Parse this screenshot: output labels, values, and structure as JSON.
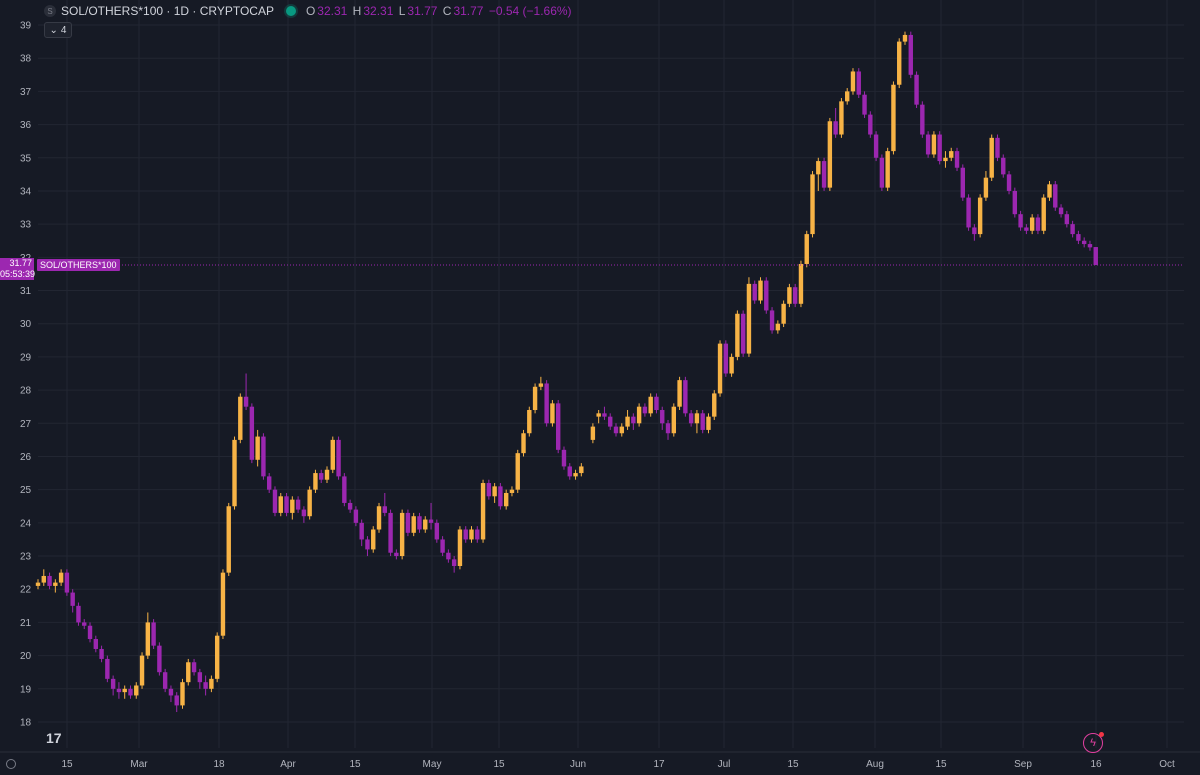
{
  "header": {
    "symbol_icon": "S",
    "title": "SOL/OTHERS*100 · 1D · CRYPTOCAP",
    "ohlc": {
      "o_label": "O",
      "o": "32.31",
      "h_label": "H",
      "h": "32.31",
      "l_label": "L",
      "l": "31.77",
      "c_label": "C",
      "c": "31.77",
      "change": "−0.54 (−1.66%)"
    },
    "collapse_count": "4"
  },
  "price_tag": {
    "value": "31.77",
    "countdown": "05:53:39",
    "series_label": "SOL/OTHERS*100"
  },
  "colors": {
    "up": "#f7b346",
    "down": "#9c27b0",
    "background": "#161a25",
    "grid": "#222632"
  },
  "icons": {
    "logo": "tradingview-logo-icon",
    "bolt": "lightning-icon",
    "settings": "gear-icon"
  },
  "chart_data": {
    "type": "candlestick",
    "y_ticks": [
      18,
      19,
      20,
      21,
      22,
      23,
      24,
      25,
      26,
      27,
      28,
      29,
      30,
      31,
      32,
      33,
      34,
      35,
      36,
      37,
      38,
      39
    ],
    "ylim": [
      17.6,
      39.3
    ],
    "x_ticks": [
      "15",
      "Mar",
      "18",
      "Apr",
      "15",
      "May",
      "15",
      "Jun",
      "17",
      "Jul",
      "15",
      "Aug",
      "15",
      "Sep",
      "16",
      "Oct"
    ],
    "last_price": 31.77,
    "candles": [
      [
        22.1,
        22.3,
        22.0,
        22.2
      ],
      [
        22.2,
        22.6,
        22.1,
        22.4
      ],
      [
        22.4,
        22.5,
        22.0,
        22.1
      ],
      [
        22.1,
        22.3,
        21.9,
        22.2
      ],
      [
        22.2,
        22.6,
        22.1,
        22.5
      ],
      [
        22.5,
        22.6,
        21.8,
        21.9
      ],
      [
        21.9,
        22.0,
        21.3,
        21.5
      ],
      [
        21.5,
        21.6,
        20.9,
        21.0
      ],
      [
        21.0,
        21.1,
        20.8,
        20.9
      ],
      [
        20.9,
        21.0,
        20.4,
        20.5
      ],
      [
        20.5,
        20.6,
        20.1,
        20.2
      ],
      [
        20.2,
        20.3,
        19.8,
        19.9
      ],
      [
        19.9,
        20.0,
        19.2,
        19.3
      ],
      [
        19.3,
        19.4,
        18.8,
        19.0
      ],
      [
        19.0,
        19.2,
        18.7,
        18.9
      ],
      [
        18.9,
        19.1,
        18.7,
        19.0
      ],
      [
        19.0,
        19.1,
        18.7,
        18.8
      ],
      [
        18.8,
        19.2,
        18.7,
        19.1
      ],
      [
        19.1,
        20.1,
        19.0,
        20.0
      ],
      [
        20.0,
        21.3,
        19.9,
        21.0
      ],
      [
        21.0,
        21.1,
        20.2,
        20.3
      ],
      [
        20.3,
        20.4,
        19.4,
        19.5
      ],
      [
        19.5,
        19.6,
        18.9,
        19.0
      ],
      [
        19.0,
        19.1,
        18.6,
        18.8
      ],
      [
        18.8,
        18.9,
        18.3,
        18.5
      ],
      [
        18.5,
        19.3,
        18.4,
        19.2
      ],
      [
        19.2,
        19.9,
        19.1,
        19.8
      ],
      [
        19.8,
        19.9,
        19.4,
        19.5
      ],
      [
        19.5,
        19.6,
        19.0,
        19.2
      ],
      [
        19.2,
        19.4,
        18.8,
        19.0
      ],
      [
        19.0,
        19.4,
        18.9,
        19.3
      ],
      [
        19.3,
        20.7,
        19.2,
        20.6
      ],
      [
        20.6,
        22.6,
        20.5,
        22.5
      ],
      [
        22.5,
        24.6,
        22.4,
        24.5
      ],
      [
        24.5,
        26.6,
        24.4,
        26.5
      ],
      [
        26.5,
        27.9,
        26.4,
        27.8
      ],
      [
        27.8,
        28.5,
        27.4,
        27.5
      ],
      [
        27.5,
        27.6,
        25.8,
        25.9
      ],
      [
        25.9,
        26.8,
        25.7,
        26.6
      ],
      [
        26.6,
        26.7,
        25.3,
        25.4
      ],
      [
        25.4,
        25.5,
        24.9,
        25.0
      ],
      [
        25.0,
        25.1,
        24.2,
        24.3
      ],
      [
        24.3,
        24.9,
        24.2,
        24.8
      ],
      [
        24.8,
        24.9,
        24.2,
        24.3
      ],
      [
        24.3,
        24.8,
        24.1,
        24.7
      ],
      [
        24.7,
        24.8,
        24.3,
        24.4
      ],
      [
        24.4,
        24.5,
        24.0,
        24.2
      ],
      [
        24.2,
        25.1,
        24.1,
        25.0
      ],
      [
        25.0,
        25.6,
        24.9,
        25.5
      ],
      [
        25.5,
        25.6,
        25.2,
        25.3
      ],
      [
        25.3,
        25.7,
        25.2,
        25.6
      ],
      [
        25.6,
        26.6,
        25.5,
        26.5
      ],
      [
        26.5,
        26.6,
        25.3,
        25.4
      ],
      [
        25.4,
        25.5,
        24.5,
        24.6
      ],
      [
        24.6,
        24.7,
        24.3,
        24.4
      ],
      [
        24.4,
        24.5,
        23.9,
        24.0
      ],
      [
        24.0,
        24.1,
        23.3,
        23.5
      ],
      [
        23.5,
        23.6,
        23.0,
        23.2
      ],
      [
        23.2,
        23.9,
        23.1,
        23.8
      ],
      [
        23.8,
        24.6,
        23.7,
        24.5
      ],
      [
        24.5,
        24.9,
        24.2,
        24.3
      ],
      [
        24.3,
        24.4,
        23.0,
        23.1
      ],
      [
        23.1,
        23.2,
        22.9,
        23.0
      ],
      [
        23.0,
        24.4,
        22.9,
        24.3
      ],
      [
        24.3,
        24.4,
        23.6,
        23.7
      ],
      [
        23.7,
        24.3,
        23.6,
        24.2
      ],
      [
        24.2,
        24.3,
        23.7,
        23.8
      ],
      [
        23.8,
        24.2,
        23.7,
        24.1
      ],
      [
        24.1,
        24.6,
        23.8,
        24.0
      ],
      [
        24.0,
        24.1,
        23.4,
        23.5
      ],
      [
        23.5,
        23.6,
        23.0,
        23.1
      ],
      [
        23.1,
        23.2,
        22.8,
        22.9
      ],
      [
        22.9,
        23.0,
        22.5,
        22.7
      ],
      [
        22.7,
        23.9,
        22.6,
        23.8
      ],
      [
        23.8,
        23.9,
        23.4,
        23.5
      ],
      [
        23.5,
        23.9,
        23.4,
        23.8
      ],
      [
        23.8,
        23.9,
        23.4,
        23.5
      ],
      [
        23.5,
        25.3,
        23.4,
        25.2
      ],
      [
        25.2,
        25.3,
        24.7,
        24.8
      ],
      [
        24.8,
        25.2,
        24.6,
        25.1
      ],
      [
        25.1,
        25.2,
        24.4,
        24.5
      ],
      [
        24.5,
        25.0,
        24.4,
        24.9
      ],
      [
        24.9,
        25.1,
        24.8,
        25.0
      ],
      [
        25.0,
        26.2,
        24.9,
        26.1
      ],
      [
        26.1,
        26.8,
        26.0,
        26.7
      ],
      [
        26.7,
        27.5,
        26.6,
        27.4
      ],
      [
        27.4,
        28.2,
        27.3,
        28.1
      ],
      [
        28.1,
        28.4,
        28.0,
        28.2
      ],
      [
        28.2,
        28.3,
        26.9,
        27.0
      ],
      [
        27.0,
        27.7,
        26.9,
        27.6
      ],
      [
        27.6,
        27.7,
        26.1,
        26.2
      ],
      [
        26.2,
        26.3,
        25.6,
        25.7
      ],
      [
        25.7,
        25.8,
        25.3,
        25.4
      ],
      [
        25.4,
        25.6,
        25.3,
        25.5
      ],
      [
        25.5,
        25.8,
        25.4,
        25.7
      ],
      null,
      [
        26.5,
        27.0,
        26.4,
        26.9
      ],
      [
        27.2,
        27.4,
        27.0,
        27.3
      ],
      [
        27.3,
        27.5,
        27.1,
        27.2
      ],
      [
        27.2,
        27.3,
        26.8,
        26.9
      ],
      [
        26.9,
        27.0,
        26.6,
        26.7
      ],
      [
        26.7,
        27.0,
        26.6,
        26.9
      ],
      [
        26.9,
        27.4,
        26.8,
        27.2
      ],
      [
        27.2,
        27.3,
        26.8,
        27.0
      ],
      [
        27.0,
        27.6,
        26.9,
        27.5
      ],
      [
        27.5,
        27.6,
        27.2,
        27.3
      ],
      [
        27.3,
        27.9,
        27.2,
        27.8
      ],
      [
        27.8,
        27.9,
        27.3,
        27.4
      ],
      [
        27.4,
        27.5,
        26.8,
        27.0
      ],
      [
        27.0,
        27.1,
        26.5,
        26.7
      ],
      [
        26.7,
        27.6,
        26.6,
        27.5
      ],
      [
        27.5,
        28.4,
        27.4,
        28.3
      ],
      [
        28.3,
        28.4,
        27.2,
        27.3
      ],
      [
        27.3,
        27.4,
        26.9,
        27.0
      ],
      [
        27.0,
        27.4,
        26.7,
        27.3
      ],
      [
        27.3,
        27.4,
        26.7,
        26.8
      ],
      [
        26.8,
        27.3,
        26.7,
        27.2
      ],
      [
        27.2,
        28.0,
        27.1,
        27.9
      ],
      [
        27.9,
        29.5,
        27.8,
        29.4
      ],
      [
        29.4,
        29.5,
        28.4,
        28.5
      ],
      [
        28.5,
        29.1,
        28.4,
        29.0
      ],
      [
        29.0,
        30.4,
        28.9,
        30.3
      ],
      [
        30.3,
        30.4,
        29.0,
        29.1
      ],
      [
        29.1,
        31.4,
        29.0,
        31.2
      ],
      [
        31.2,
        31.3,
        30.6,
        30.7
      ],
      [
        30.7,
        31.4,
        30.6,
        31.3
      ],
      [
        31.3,
        31.4,
        30.3,
        30.4
      ],
      [
        30.4,
        30.5,
        29.7,
        29.8
      ],
      [
        29.8,
        30.1,
        29.7,
        30.0
      ],
      [
        30.0,
        30.7,
        29.9,
        30.6
      ],
      [
        30.6,
        31.2,
        30.5,
        31.1
      ],
      [
        31.1,
        31.2,
        30.5,
        30.6
      ],
      [
        30.6,
        31.9,
        30.5,
        31.8
      ],
      [
        31.8,
        32.8,
        31.7,
        32.7
      ],
      [
        32.7,
        34.6,
        32.6,
        34.5
      ],
      [
        34.5,
        35.0,
        34.0,
        34.9
      ],
      [
        34.9,
        35.0,
        34.0,
        34.1
      ],
      [
        34.1,
        36.2,
        34.0,
        36.1
      ],
      [
        36.1,
        36.5,
        35.6,
        35.7
      ],
      [
        35.7,
        36.8,
        35.6,
        36.7
      ],
      [
        36.7,
        37.1,
        36.6,
        37.0
      ],
      [
        37.0,
        37.7,
        36.9,
        37.6
      ],
      [
        37.6,
        37.7,
        36.8,
        36.9
      ],
      [
        36.9,
        37.0,
        36.2,
        36.3
      ],
      [
        36.3,
        36.4,
        35.6,
        35.7
      ],
      [
        35.7,
        35.8,
        34.9,
        35.0
      ],
      [
        35.0,
        35.1,
        34.0,
        34.1
      ],
      [
        34.1,
        35.3,
        34.0,
        35.2
      ],
      [
        35.2,
        37.3,
        35.1,
        37.2
      ],
      [
        37.2,
        38.6,
        37.1,
        38.5
      ],
      [
        38.5,
        38.8,
        38.4,
        38.7
      ],
      [
        38.7,
        38.8,
        37.4,
        37.5
      ],
      [
        37.5,
        37.6,
        36.5,
        36.6
      ],
      [
        36.6,
        36.7,
        35.6,
        35.7
      ],
      [
        35.7,
        35.8,
        35.0,
        35.1
      ],
      [
        35.1,
        35.8,
        35.0,
        35.7
      ],
      [
        35.7,
        35.8,
        34.8,
        34.9
      ],
      [
        34.9,
        35.2,
        34.7,
        35.0
      ],
      [
        35.0,
        35.3,
        34.9,
        35.2
      ],
      [
        35.2,
        35.3,
        34.6,
        34.7
      ],
      [
        34.7,
        34.8,
        33.7,
        33.8
      ],
      [
        33.8,
        33.9,
        32.8,
        32.9
      ],
      [
        32.9,
        33.0,
        32.5,
        32.7
      ],
      [
        32.7,
        33.9,
        32.6,
        33.8
      ],
      [
        33.8,
        34.6,
        33.7,
        34.4
      ],
      [
        34.4,
        35.7,
        34.3,
        35.6
      ],
      [
        35.6,
        35.7,
        34.9,
        35.0
      ],
      [
        35.0,
        35.1,
        34.4,
        34.5
      ],
      [
        34.5,
        34.6,
        33.9,
        34.0
      ],
      [
        34.0,
        34.1,
        33.2,
        33.3
      ],
      [
        33.3,
        33.4,
        32.8,
        32.9
      ],
      [
        32.9,
        33.0,
        32.7,
        32.8
      ],
      [
        32.8,
        33.3,
        32.7,
        33.2
      ],
      [
        33.2,
        33.3,
        32.7,
        32.8
      ],
      [
        32.8,
        33.9,
        32.7,
        33.8
      ],
      [
        33.8,
        34.3,
        33.7,
        34.2
      ],
      [
        34.2,
        34.3,
        33.4,
        33.5
      ],
      [
        33.5,
        33.6,
        33.2,
        33.3
      ],
      [
        33.3,
        33.4,
        32.9,
        33.0
      ],
      [
        33.0,
        33.1,
        32.6,
        32.7
      ],
      [
        32.7,
        32.8,
        32.4,
        32.5
      ],
      [
        32.5,
        32.6,
        32.3,
        32.4
      ],
      [
        32.4,
        32.5,
        32.2,
        32.3
      ],
      [
        32.31,
        32.31,
        31.77,
        31.77
      ]
    ]
  }
}
